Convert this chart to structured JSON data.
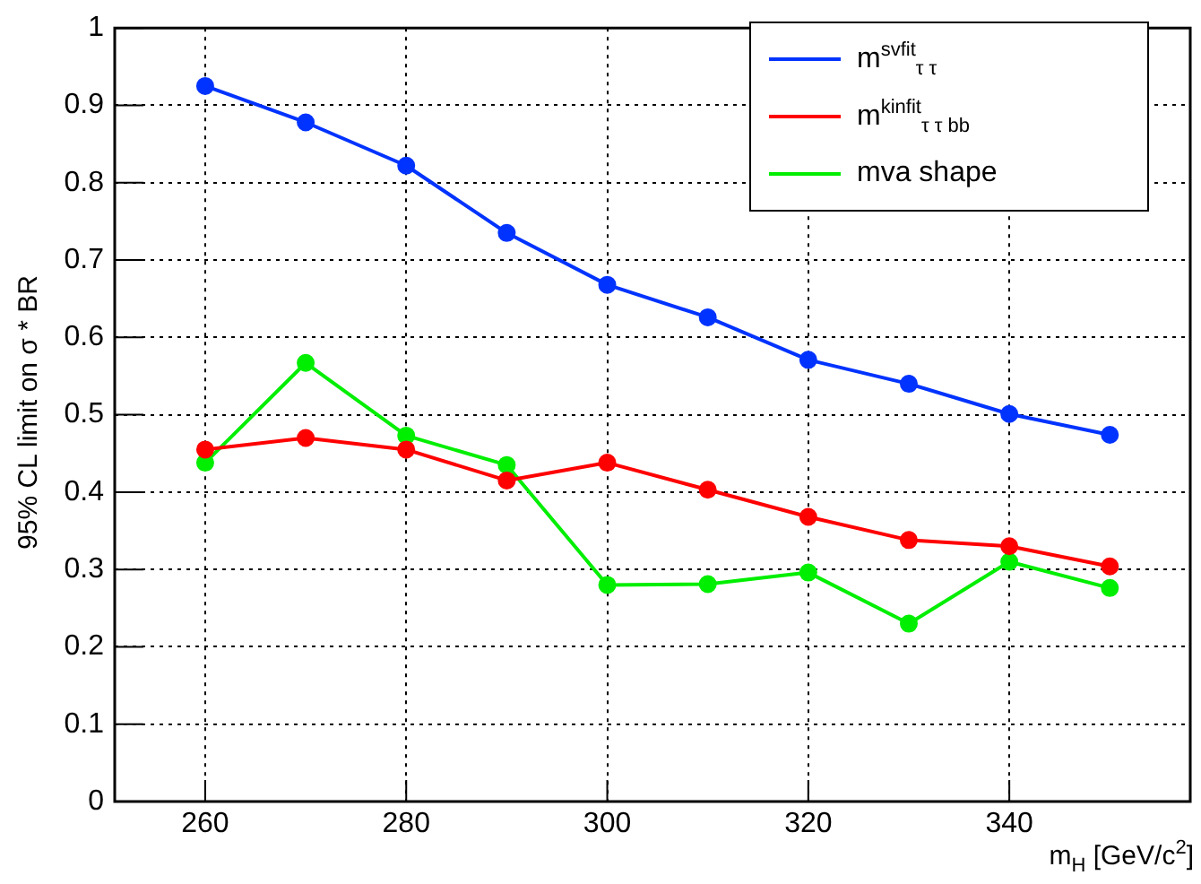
{
  "chart_data": {
    "type": "line",
    "xlabel": "m$_{H}$ [GeV/c$^{2}$]",
    "ylabel": "95% CL limit on σ * BR",
    "x": [
      260,
      270,
      280,
      290,
      300,
      310,
      320,
      330,
      340,
      350
    ],
    "series": [
      {
        "name": "m$^{svfit}$$_{τ τ}$",
        "color": "#0033ff",
        "values": [
          0.925,
          0.878,
          0.822,
          0.735,
          0.668,
          0.626,
          0.571,
          0.54,
          0.501,
          0.474
        ]
      },
      {
        "name": "m$^{kinfit}$$_{τ τ bb}$",
        "color": "#ff0000",
        "values": [
          0.455,
          0.47,
          0.455,
          0.415,
          0.438,
          0.403,
          0.368,
          0.338,
          0.33,
          0.304
        ]
      },
      {
        "name": "mva shape",
        "color": "#00ee00",
        "values": [
          0.438,
          0.567,
          0.473,
          0.435,
          0.28,
          0.281,
          0.296,
          0.23,
          0.31,
          0.276
        ]
      }
    ],
    "xlim": [
      251,
      358
    ],
    "xticks": [
      260,
      280,
      300,
      320,
      340
    ],
    "ylim": [
      0,
      1
    ],
    "yticks": [
      0,
      0.1,
      0.2,
      0.3,
      0.4,
      0.5,
      0.6,
      0.7,
      0.8,
      0.9,
      1
    ],
    "grid": true,
    "legend": "top right",
    "marker": "circle",
    "line_style": "solid"
  }
}
